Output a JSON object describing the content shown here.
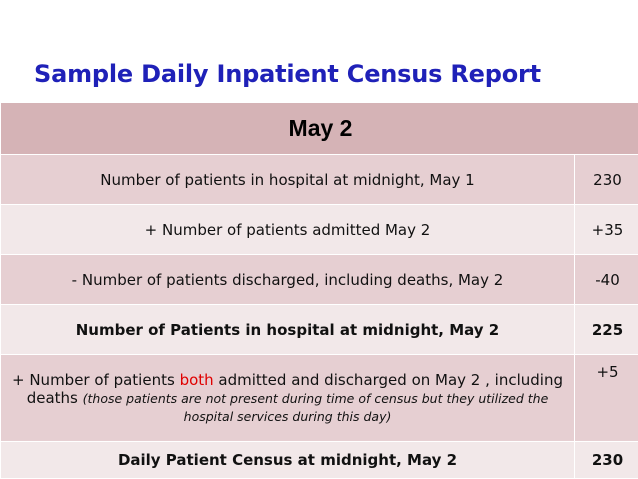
{
  "title": "Sample Daily Inpatient Census Report",
  "table": {
    "header": "May 2",
    "rows": [
      {
        "label": "Number of patients in hospital at midnight, May 1",
        "value": "230"
      },
      {
        "label": "+ Number of patients admitted May 2",
        "value": "+35"
      },
      {
        "label": "- Number of patients discharged, including deaths, May 2",
        "value": "-40"
      },
      {
        "label": "Number of Patients in hospital at midnight, May 2",
        "value": "225"
      },
      {
        "label_part1": "+ Number of patients ",
        "label_highlight": "both",
        "label_part2": " admitted and discharged on May 2 , including deaths ",
        "label_note": "(those patients are not present during time of census but they utilized the hospital services during this day)",
        "value": "+5"
      },
      {
        "label": "Daily Patient Census at midnight, May 2",
        "value": "230"
      }
    ]
  },
  "colors": {
    "title": "#1f21b8",
    "header_bg": "#d5b3b6",
    "row_dark_bg": "#e6cfd2",
    "row_light_bg": "#f2e8e9",
    "highlight": "#e00000"
  }
}
